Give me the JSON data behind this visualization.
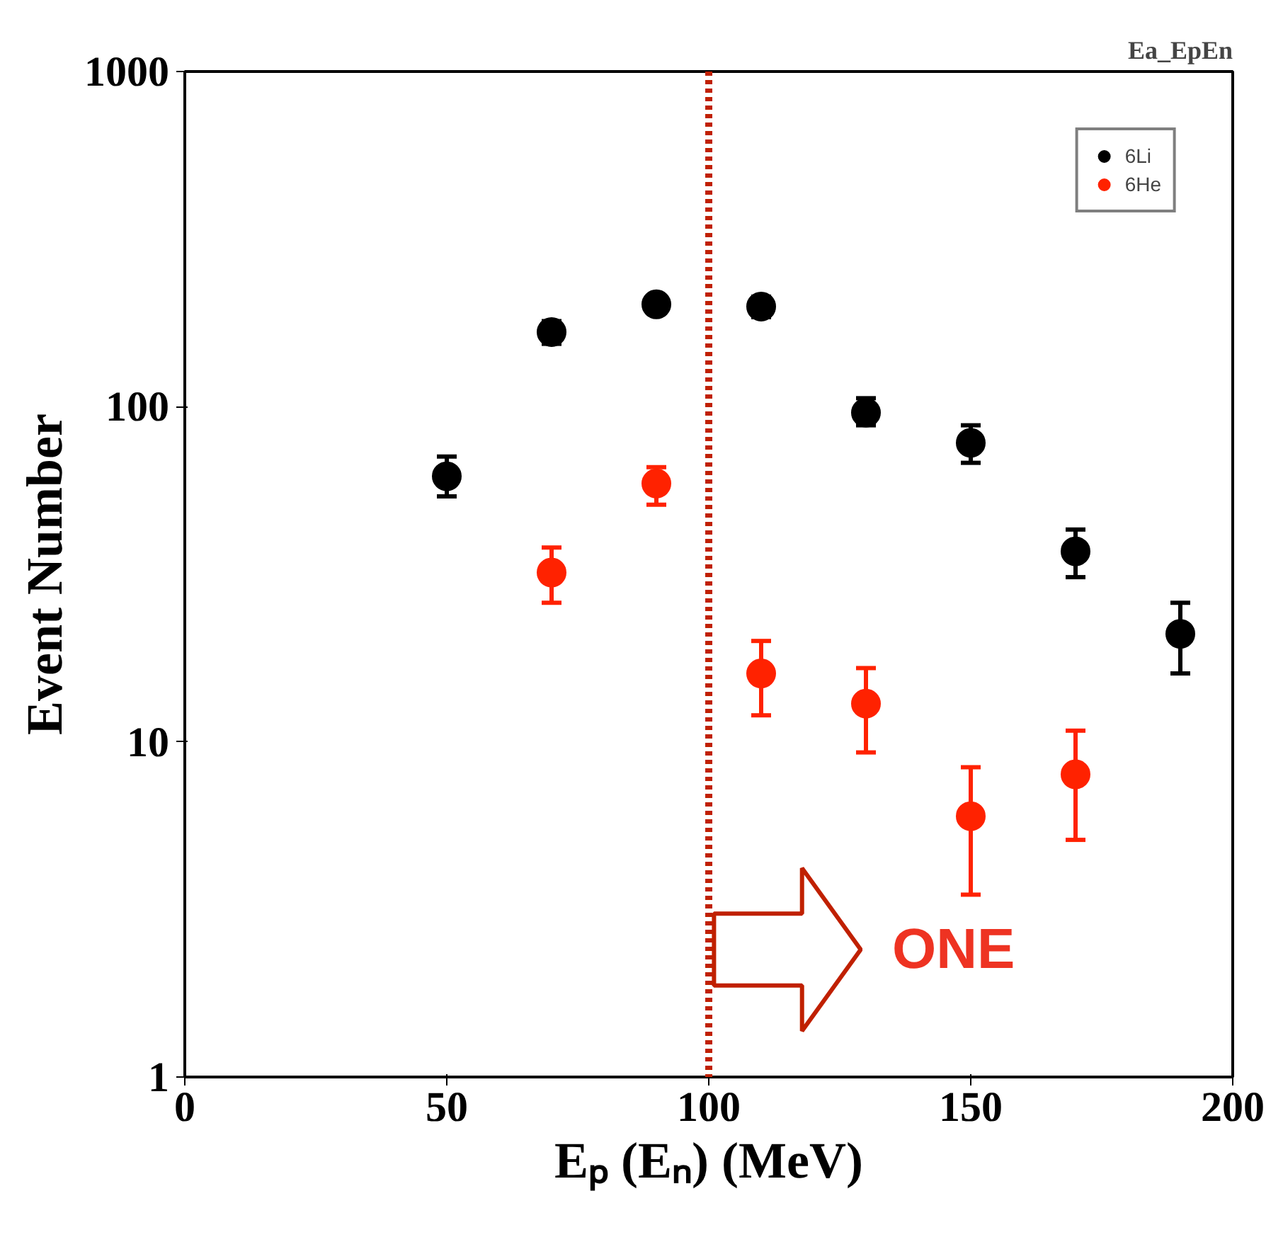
{
  "chart_data": {
    "type": "scatter",
    "title": "Ea_EpEn",
    "xlabel": "Eₚ (Eₙ) (MeV)",
    "ylabel": "Event Number",
    "log": "y",
    "xlim": [
      0,
      200
    ],
    "xticks": [
      0,
      50,
      100,
      150,
      200
    ],
    "ylim": [
      1,
      1000
    ],
    "yticks": [
      1,
      10,
      100,
      1000
    ],
    "grid": false,
    "legend": "top right",
    "marker": "circle",
    "series": [
      {
        "name": "6Li",
        "color": "#000000",
        "x": [
          50,
          70,
          90,
          110,
          130,
          150,
          170,
          190
        ],
        "values": [
          62,
          167,
          202,
          199,
          96,
          78,
          37,
          21
        ],
        "errors": [
          [
            54,
            71
          ],
          [
            154,
            180
          ],
          null,
          [
            185,
            213
          ],
          [
            88,
            106
          ],
          [
            68,
            88
          ],
          [
            31,
            43
          ],
          [
            16,
            26
          ]
        ]
      },
      {
        "name": "6He",
        "color": "#ff2200",
        "x": [
          70,
          90,
          110,
          130,
          150,
          170
        ],
        "values": [
          32,
          59,
          16,
          13,
          6,
          8
        ],
        "errors": [
          [
            26,
            38
          ],
          [
            51,
            66
          ],
          [
            12,
            20
          ],
          [
            9.3,
            16.6
          ],
          [
            3.5,
            8.4
          ],
          [
            5.1,
            10.8
          ]
        ]
      }
    ],
    "ref_lines": [
      {
        "axis": "x",
        "value": 100,
        "color": "#c02000",
        "line_style": "dotted"
      }
    ],
    "annotations": [
      "ONE"
    ]
  }
}
